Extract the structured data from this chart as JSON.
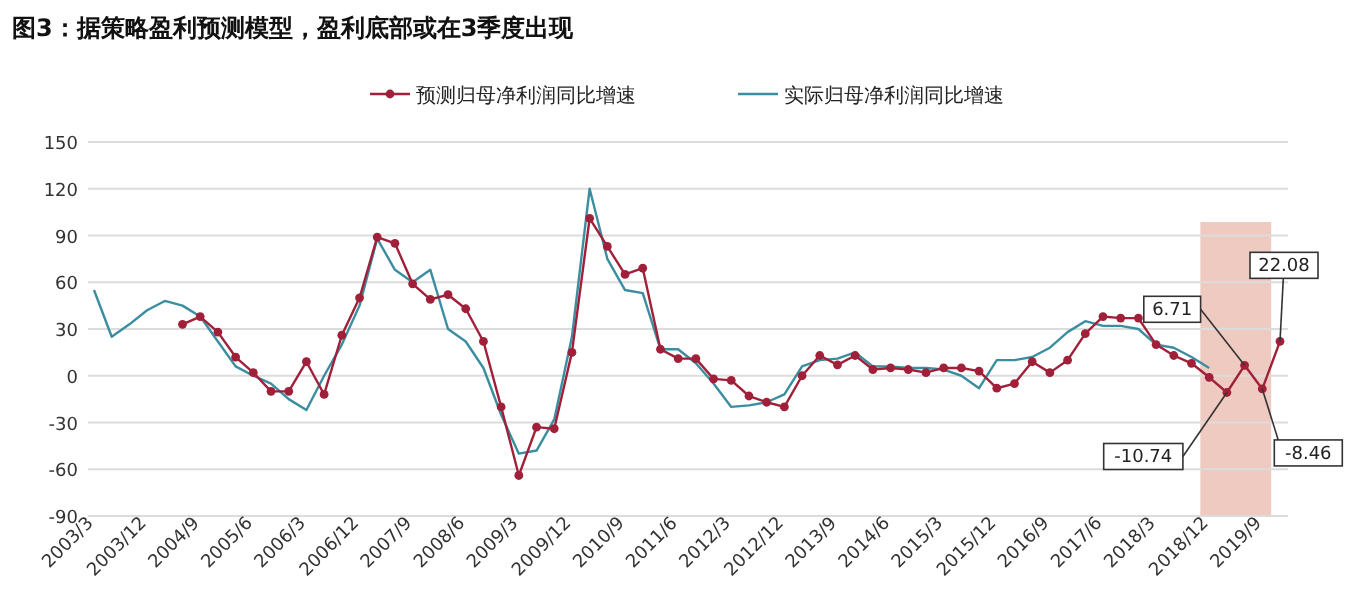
{
  "chart_data": {
    "type": "line",
    "title": "图3：据策略盈利预测模型，盈利底部或在3季度出现",
    "categories": [
      "2003/3",
      null,
      null,
      "2003/12",
      null,
      null,
      "2004/9",
      null,
      null,
      "2005/6",
      null,
      null,
      "2006/3",
      null,
      null,
      "2006/12",
      null,
      null,
      "2007/9",
      null,
      null,
      "2008/6",
      null,
      null,
      "2009/3",
      null,
      null,
      "2009/12",
      null,
      null,
      "2010/9",
      null,
      null,
      "2011/6",
      null,
      null,
      "2012/3",
      null,
      null,
      "2012/12",
      null,
      null,
      "2013/9",
      null,
      null,
      "2014/6",
      null,
      null,
      "2015/3",
      null,
      null,
      "2015/12",
      null,
      null,
      "2016/9",
      null,
      null,
      "2017/6",
      null,
      null,
      "2018/3",
      null,
      null,
      "2018/12",
      null,
      null,
      "2019/9",
      null
    ],
    "series": [
      {
        "name": "预测归母净利润同比增速",
        "color": "#a0203a",
        "marker": "circle",
        "values": [
          null,
          null,
          null,
          null,
          null,
          33,
          38,
          28,
          12,
          2,
          -10,
          -10,
          9,
          -12,
          26,
          50,
          89,
          85,
          59,
          49,
          52,
          43,
          22,
          -20,
          -64,
          -33,
          -34,
          15,
          101,
          83,
          65,
          69,
          17,
          11,
          11,
          -2,
          -3,
          -13,
          -17,
          -20,
          0,
          13,
          7,
          13,
          4,
          5,
          4,
          2,
          5,
          5,
          3,
          -8,
          -5,
          9,
          2,
          10,
          27,
          38,
          37,
          37,
          20,
          13,
          8,
          -1,
          -10.74,
          6.71,
          -8.46,
          22.08
        ],
        "value_labels": [
          null,
          null,
          null,
          null,
          null,
          null,
          null,
          null,
          null,
          null,
          null,
          null,
          null,
          null,
          null,
          null,
          null,
          null,
          null,
          null,
          null,
          null,
          null,
          null,
          null,
          null,
          null,
          null,
          null,
          null,
          null,
          null,
          null,
          null,
          null,
          null,
          null,
          null,
          null,
          null,
          null,
          null,
          null,
          null,
          null,
          null,
          null,
          null,
          null,
          null,
          null,
          null,
          null,
          null,
          null,
          null,
          null,
          null,
          null,
          null,
          null,
          null,
          null,
          null,
          "-10.74",
          "6.71",
          "-8.46",
          "22.08"
        ]
      },
      {
        "name": "实际归母净利润同比增速",
        "color": "#3a8ea0",
        "marker": "none",
        "values": [
          55,
          25,
          33,
          42,
          48,
          45,
          38,
          22,
          6,
          0,
          -5,
          -15,
          -22,
          0,
          20,
          45,
          88,
          68,
          60,
          68,
          30,
          22,
          5,
          -25,
          -50,
          -48,
          -28,
          25,
          120,
          75,
          55,
          53,
          17,
          17,
          8,
          -5,
          -20,
          -19,
          -17,
          -12,
          6,
          10,
          11,
          15,
          6,
          6,
          5,
          5,
          4,
          0,
          -8,
          10,
          10,
          12,
          18,
          28,
          35,
          32,
          32,
          30,
          20,
          18,
          12,
          5,
          null,
          null,
          null,
          null
        ]
      }
    ],
    "ylim": [
      -90,
      150
    ],
    "yticks": [
      150,
      120,
      90,
      60,
      30,
      0,
      -30,
      -60,
      -90
    ],
    "grid": "y",
    "legend": "top",
    "bands": [
      {
        "axis": "x",
        "from": "2018/12",
        "to": "2019/9",
        "color": "#e8b8ac"
      }
    ]
  }
}
